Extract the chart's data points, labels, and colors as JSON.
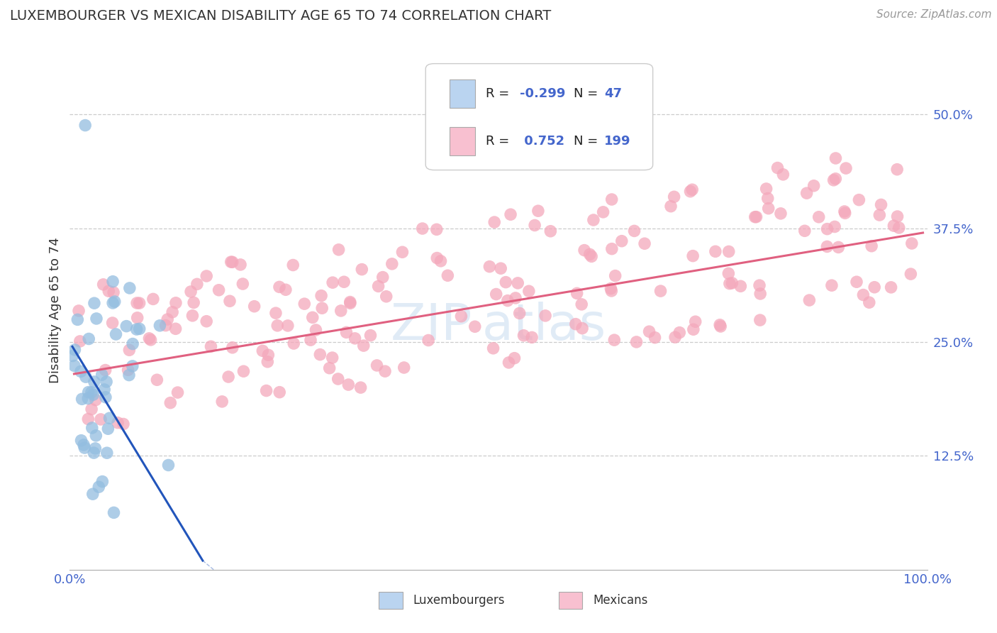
{
  "title": "LUXEMBOURGER VS MEXICAN DISABILITY AGE 65 TO 74 CORRELATION CHART",
  "source_text": "Source: ZipAtlas.com",
  "ylabel": "Disability Age 65 to 74",
  "xlim": [
    0.0,
    1.0
  ],
  "ylim": [
    0.0,
    0.57
  ],
  "ytick_positions": [
    0.125,
    0.25,
    0.375,
    0.5
  ],
  "ytick_labels": [
    "12.5%",
    "25.0%",
    "37.5%",
    "50.0%"
  ],
  "luxembourger_color": "#93bde0",
  "mexican_color": "#f4a8bb",
  "luxembourger_line_color": "#2255bb",
  "mexican_line_color": "#e06080",
  "legend_lux_box_color": "#bad4f0",
  "legend_mex_box_color": "#f8c0d0",
  "R_lux": -0.299,
  "N_lux": 47,
  "R_mex": 0.752,
  "N_mex": 199,
  "background_color": "#ffffff",
  "grid_color": "#cccccc",
  "tick_color": "#4466cc",
  "text_dark": "#333333",
  "title_fontsize": 14,
  "source_fontsize": 11,
  "tick_fontsize": 13,
  "ylabel_fontsize": 13
}
